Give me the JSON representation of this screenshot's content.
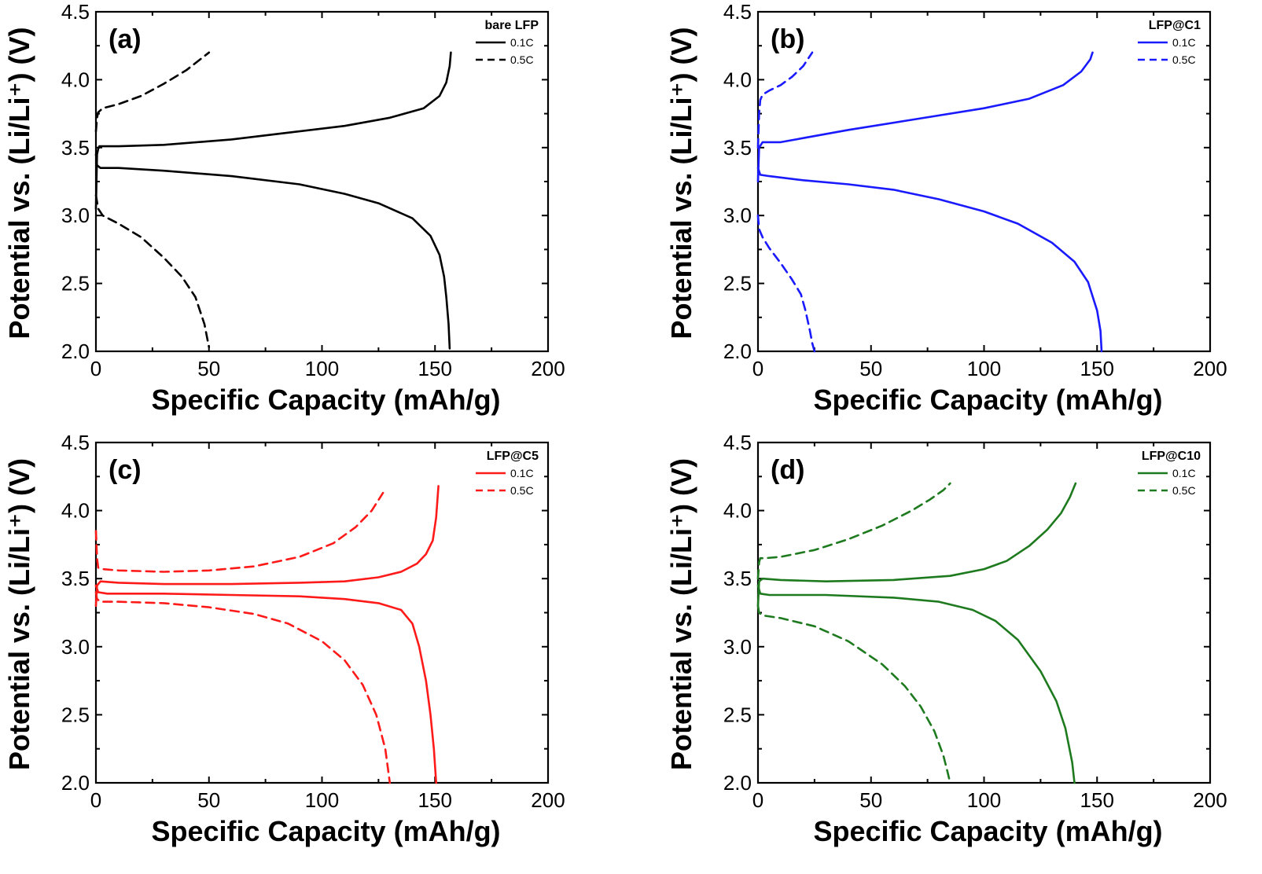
{
  "chart_data": [
    {
      "type": "line",
      "panel_label": "(a)",
      "legend_title": "bare LFP",
      "legend_placement": "top-right",
      "color": "#000000",
      "xlabel": "Specific Capacity (mAh/g)",
      "ylabel": "Potential vs. (Li/Li⁺) (V)",
      "xlim": [
        0,
        200
      ],
      "ylim": [
        2.0,
        4.5
      ],
      "xticks": [
        "0",
        "50",
        "100",
        "150",
        "200"
      ],
      "yticks": [
        "2.0",
        "2.5",
        "3.0",
        "3.5",
        "4.0",
        "4.5"
      ],
      "series": [
        {
          "name": "0.1C",
          "dash": "solid",
          "segment": "charge",
          "x": [
            0,
            0.5,
            1,
            1.5,
            3,
            10,
            30,
            60,
            90,
            110,
            130,
            145,
            152,
            155,
            156.5,
            157
          ],
          "y": [
            3.05,
            3.45,
            3.49,
            3.51,
            3.51,
            3.51,
            3.52,
            3.56,
            3.62,
            3.66,
            3.72,
            3.79,
            3.88,
            3.98,
            4.1,
            4.2
          ]
        },
        {
          "name": "0.1C",
          "dash": "solid",
          "segment": "discharge",
          "x": [
            0,
            0.5,
            2,
            10,
            30,
            60,
            90,
            110,
            125,
            140,
            148,
            152,
            154,
            155,
            156,
            156.5
          ],
          "y": [
            3.45,
            3.37,
            3.35,
            3.35,
            3.33,
            3.29,
            3.23,
            3.16,
            3.09,
            2.98,
            2.85,
            2.71,
            2.55,
            2.4,
            2.2,
            2.02
          ]
        },
        {
          "name": "0.5C",
          "dash": "dashed",
          "segment": "charge",
          "x": [
            0,
            0.5,
            1,
            3,
            10,
            20,
            30,
            40,
            50
          ],
          "y": [
            3.62,
            3.72,
            3.76,
            3.79,
            3.82,
            3.88,
            3.97,
            4.07,
            4.2
          ]
        },
        {
          "name": "0.5C",
          "dash": "dashed",
          "segment": "discharge",
          "x": [
            0,
            1,
            3,
            10,
            20,
            30,
            38,
            44,
            48,
            50
          ],
          "y": [
            3.15,
            3.05,
            3.0,
            2.94,
            2.84,
            2.69,
            2.55,
            2.4,
            2.2,
            2.03
          ]
        }
      ]
    },
    {
      "type": "line",
      "panel_label": "(b)",
      "legend_title": "LFP@C1",
      "legend_placement": "top-right",
      "color": "#1a1aff",
      "xlabel": "Specific Capacity (mAh/g)",
      "ylabel": "Potential vs. (Li/Li⁺) (V)",
      "xlim": [
        0,
        200
      ],
      "ylim": [
        2.0,
        4.5
      ],
      "xticks": [
        "0",
        "50",
        "100",
        "150",
        "200"
      ],
      "yticks": [
        "2.0",
        "2.5",
        "3.0",
        "3.5",
        "4.0",
        "4.5"
      ],
      "series": [
        {
          "name": "0.1C",
          "dash": "solid",
          "segment": "charge",
          "x": [
            0,
            0.5,
            2,
            10,
            20,
            40,
            70,
            100,
            120,
            135,
            143,
            147,
            148
          ],
          "y": [
            3.25,
            3.5,
            3.54,
            3.54,
            3.57,
            3.63,
            3.71,
            3.79,
            3.86,
            3.96,
            4.06,
            4.15,
            4.2
          ]
        },
        {
          "name": "0.1C",
          "dash": "solid",
          "segment": "discharge",
          "x": [
            0,
            1,
            5,
            20,
            40,
            60,
            80,
            100,
            115,
            130,
            140,
            146,
            150,
            151.5,
            152
          ],
          "y": [
            3.35,
            3.3,
            3.29,
            3.26,
            3.23,
            3.19,
            3.12,
            3.03,
            2.94,
            2.8,
            2.66,
            2.51,
            2.3,
            2.15,
            2.0
          ]
        },
        {
          "name": "0.5C",
          "dash": "dashed",
          "segment": "charge",
          "x": [
            0,
            0.5,
            1,
            2,
            5,
            10,
            15,
            20,
            24
          ],
          "y": [
            3.5,
            3.75,
            3.85,
            3.89,
            3.92,
            3.96,
            4.02,
            4.1,
            4.2
          ]
        },
        {
          "name": "0.5C",
          "dash": "dashed",
          "segment": "discharge",
          "x": [
            0,
            0.5,
            2,
            5,
            10,
            15,
            19,
            21,
            23,
            24,
            25
          ],
          "y": [
            3.0,
            2.9,
            2.84,
            2.76,
            2.65,
            2.53,
            2.42,
            2.3,
            2.15,
            2.06,
            2.0
          ]
        }
      ]
    },
    {
      "type": "line",
      "panel_label": "(c)",
      "legend_title": "LFP@C5",
      "legend_placement": "top-right",
      "color": "#ff1a1a",
      "xlabel": "Specific Capacity (mAh/g)",
      "ylabel": "Potential vs. (Li/Li⁺) (V)",
      "xlim": [
        0,
        200
      ],
      "ylim": [
        2.0,
        4.5
      ],
      "xticks": [
        "0",
        "50",
        "100",
        "150",
        "200"
      ],
      "yticks": [
        "2.0",
        "2.5",
        "3.0",
        "3.5",
        "4.0",
        "4.5"
      ],
      "series": [
        {
          "name": "0.1C",
          "dash": "solid",
          "segment": "charge",
          "x": [
            0,
            0.5,
            2,
            10,
            30,
            60,
            90,
            110,
            125,
            135,
            142,
            146,
            149,
            150.5,
            151.5
          ],
          "y": [
            3.3,
            3.45,
            3.48,
            3.47,
            3.46,
            3.46,
            3.47,
            3.48,
            3.51,
            3.55,
            3.61,
            3.68,
            3.78,
            3.95,
            4.18
          ]
        },
        {
          "name": "0.1C",
          "dash": "solid",
          "segment": "discharge",
          "x": [
            0,
            1,
            5,
            30,
            60,
            90,
            110,
            125,
            135,
            140,
            143,
            146,
            148,
            149.5,
            150.5
          ],
          "y": [
            3.45,
            3.4,
            3.39,
            3.39,
            3.38,
            3.37,
            3.35,
            3.32,
            3.27,
            3.17,
            3.0,
            2.75,
            2.5,
            2.25,
            2.0
          ]
        },
        {
          "name": "0.5C",
          "dash": "dashed",
          "segment": "charge",
          "x": [
            0,
            0.5,
            1,
            3,
            10,
            30,
            50,
            70,
            90,
            105,
            115,
            122,
            127
          ],
          "y": [
            3.85,
            3.65,
            3.58,
            3.57,
            3.56,
            3.55,
            3.56,
            3.59,
            3.66,
            3.76,
            3.88,
            4.0,
            4.13
          ]
        },
        {
          "name": "0.5C",
          "dash": "dashed",
          "segment": "discharge",
          "x": [
            0,
            0.5,
            2,
            10,
            30,
            50,
            70,
            85,
            100,
            110,
            118,
            124,
            128,
            130
          ],
          "y": [
            3.4,
            3.35,
            3.33,
            3.33,
            3.32,
            3.29,
            3.24,
            3.17,
            3.04,
            2.9,
            2.72,
            2.5,
            2.25,
            2.0
          ]
        }
      ]
    },
    {
      "type": "line",
      "panel_label": "(d)",
      "legend_title": "LFP@C10",
      "legend_placement": "top-right",
      "color": "#1e7a1e",
      "xlabel": "Specific Capacity (mAh/g)",
      "ylabel": "Potential vs. (Li/Li⁺) (V)",
      "xlim": [
        0,
        200
      ],
      "ylim": [
        2.0,
        4.5
      ],
      "xticks": [
        "0",
        "50",
        "100",
        "150",
        "200"
      ],
      "yticks": [
        "2.0",
        "2.5",
        "3.0",
        "3.5",
        "4.0",
        "4.5"
      ],
      "series": [
        {
          "name": "0.1C",
          "dash": "solid",
          "segment": "charge",
          "x": [
            0,
            0.5,
            2,
            10,
            30,
            60,
            85,
            100,
            110,
            120,
            128,
            134,
            138,
            140.5
          ],
          "y": [
            3.3,
            3.48,
            3.5,
            3.49,
            3.48,
            3.49,
            3.52,
            3.57,
            3.63,
            3.74,
            3.86,
            3.98,
            4.1,
            4.2
          ]
        },
        {
          "name": "0.1C",
          "dash": "solid",
          "segment": "discharge",
          "x": [
            0,
            1,
            5,
            30,
            60,
            80,
            95,
            105,
            115,
            125,
            132,
            136,
            139,
            140
          ],
          "y": [
            3.45,
            3.39,
            3.38,
            3.38,
            3.36,
            3.33,
            3.27,
            3.19,
            3.05,
            2.82,
            2.6,
            2.4,
            2.15,
            2.0
          ]
        },
        {
          "name": "0.5C",
          "dash": "dashed",
          "segment": "charge",
          "x": [
            0,
            0.5,
            1,
            3,
            10,
            25,
            40,
            55,
            68,
            76,
            82,
            85
          ],
          "y": [
            3.5,
            3.62,
            3.65,
            3.65,
            3.66,
            3.71,
            3.79,
            3.89,
            4.0,
            4.08,
            4.15,
            4.2
          ]
        },
        {
          "name": "0.5C",
          "dash": "dashed",
          "segment": "discharge",
          "x": [
            0,
            0.5,
            2,
            10,
            25,
            40,
            55,
            65,
            72,
            78,
            82,
            84,
            85
          ],
          "y": [
            3.3,
            3.25,
            3.23,
            3.21,
            3.15,
            3.04,
            2.87,
            2.71,
            2.56,
            2.38,
            2.2,
            2.07,
            2.0
          ]
        }
      ]
    }
  ]
}
